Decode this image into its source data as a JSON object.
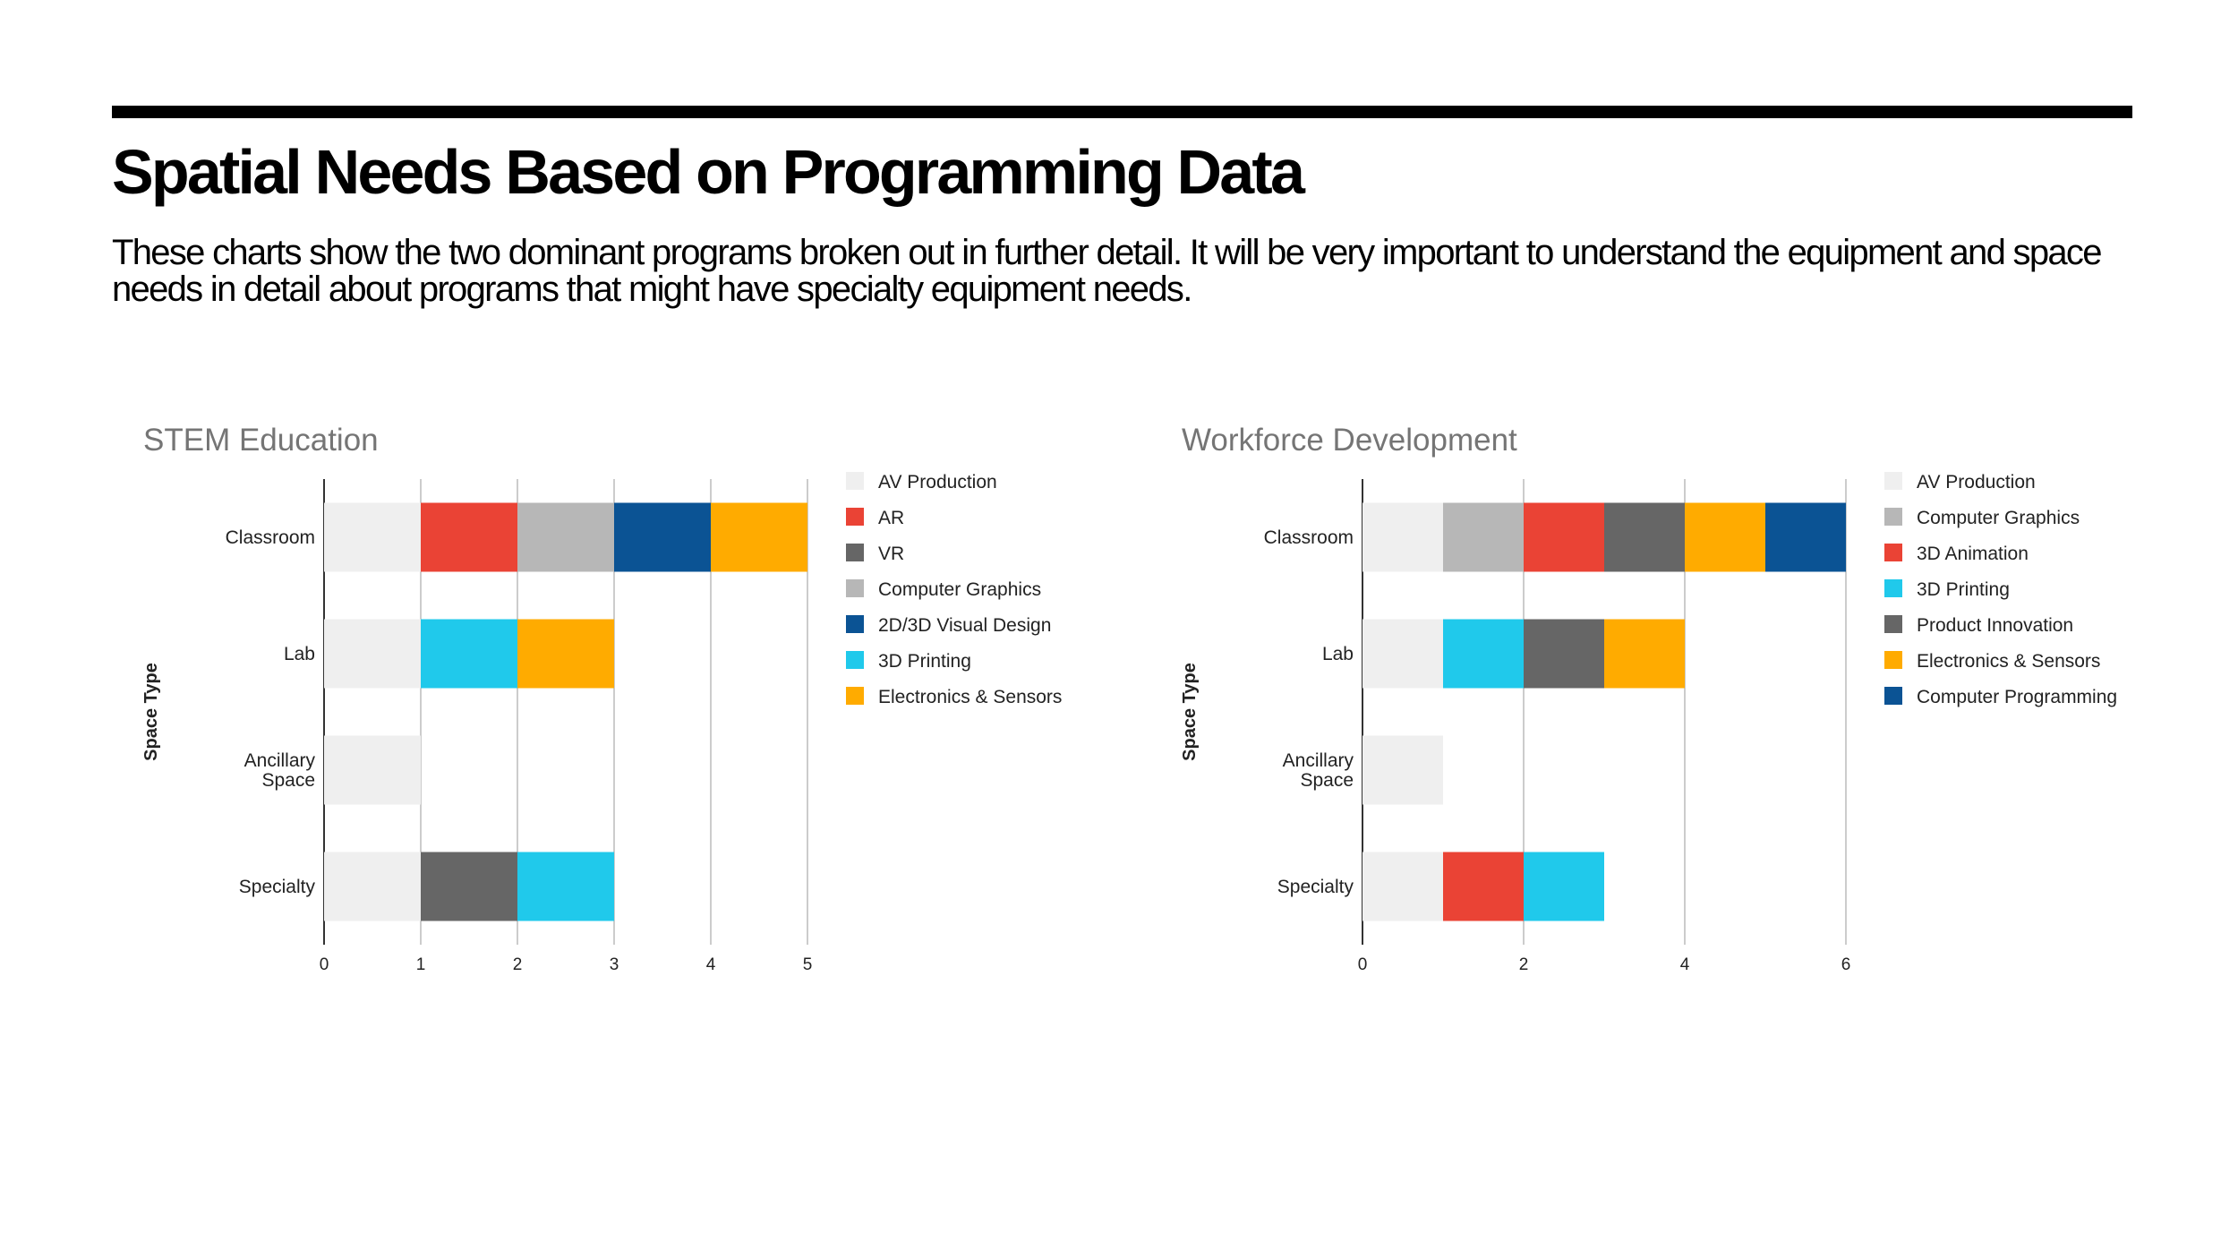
{
  "header": {
    "title": "Spatial Needs Based on Programming Data",
    "subtitle": "These charts show the two dominant programs broken out in further detail. It will be very important to understand the equipment and space needs in detail about programs that might have specialty equipment needs."
  },
  "chart_data": [
    {
      "type": "bar",
      "orientation": "horizontal",
      "stacked": true,
      "title": "STEM Education",
      "xlabel": "",
      "ylabel": "Space Type",
      "xlim": [
        0,
        5
      ],
      "xticks": [
        0,
        1,
        2,
        3,
        4,
        5
      ],
      "categories": [
        [
          "Classroom"
        ],
        [
          "Lab"
        ],
        [
          "Ancillary",
          "Space"
        ],
        [
          "Specialty"
        ]
      ],
      "legend_position": "right",
      "grid": true,
      "series": [
        {
          "name": "AV Production",
          "color": "#efefef",
          "values": [
            1,
            1,
            1,
            1
          ]
        },
        {
          "name": "AR",
          "color": "#ea4335",
          "values": [
            1,
            0,
            0,
            0
          ]
        },
        {
          "name": "VR",
          "color": "#666666",
          "values": [
            0,
            0,
            0,
            1
          ]
        },
        {
          "name": "Computer Graphics",
          "color": "#b7b7b7",
          "values": [
            1,
            0,
            0,
            0
          ]
        },
        {
          "name": "2D/3D Visual Design",
          "color": "#0b5394",
          "values": [
            1,
            0,
            0,
            0
          ]
        },
        {
          "name": "3D Printing",
          "color": "#20c9eb",
          "values": [
            0,
            1,
            0,
            1
          ]
        },
        {
          "name": "Electronics & Sensors",
          "color": "#ffab00",
          "values": [
            1,
            1,
            0,
            0
          ]
        }
      ]
    },
    {
      "type": "bar",
      "orientation": "horizontal",
      "stacked": true,
      "title": "Workforce Development",
      "xlabel": "",
      "ylabel": "Space Type",
      "xlim": [
        0,
        6
      ],
      "xticks": [
        0,
        2,
        4,
        6
      ],
      "categories": [
        [
          "Classroom"
        ],
        [
          "Lab"
        ],
        [
          "Ancillary",
          "Space"
        ],
        [
          "Specialty"
        ]
      ],
      "legend_position": "right",
      "grid": true,
      "series": [
        {
          "name": "AV Production",
          "color": "#efefef",
          "values": [
            1,
            1,
            1,
            1
          ]
        },
        {
          "name": "Computer Graphics",
          "color": "#b7b7b7",
          "values": [
            1,
            0,
            0,
            0
          ]
        },
        {
          "name": "3D Animation",
          "color": "#ea4335",
          "values": [
            1,
            0,
            0,
            1
          ]
        },
        {
          "name": "3D Printing",
          "color": "#20c9eb",
          "values": [
            0,
            1,
            0,
            1
          ]
        },
        {
          "name": "Product Innovation",
          "color": "#666666",
          "values": [
            1,
            1,
            0,
            0
          ]
        },
        {
          "name": "Electronics & Sensors",
          "color": "#ffab00",
          "values": [
            1,
            1,
            0,
            0
          ]
        },
        {
          "name": "Computer Programming",
          "color": "#0b5394",
          "values": [
            1,
            0,
            0,
            0
          ]
        }
      ]
    }
  ]
}
